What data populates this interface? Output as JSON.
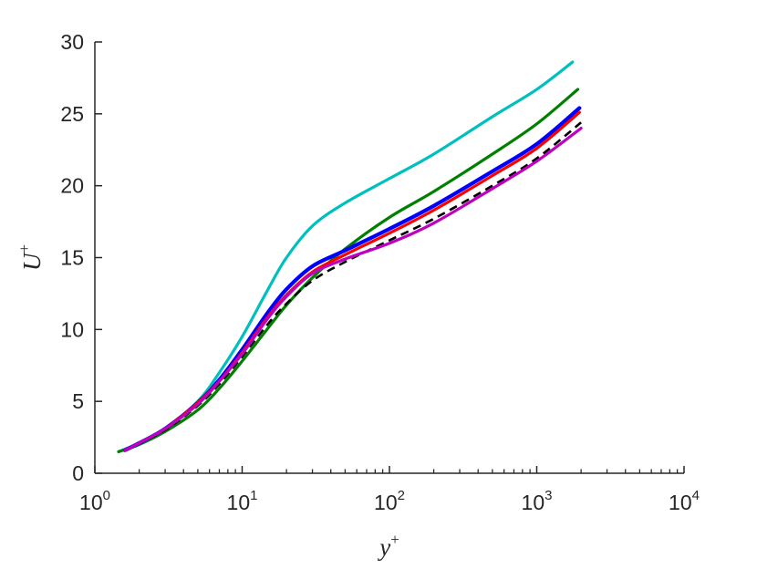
{
  "chart_data": {
    "type": "line",
    "xlabel": "y",
    "xlabel_sup": "+",
    "ylabel": "U",
    "ylabel_sup": "+",
    "xscale": "log",
    "xlim": [
      1,
      10000
    ],
    "ylim": [
      0,
      30
    ],
    "grid": false,
    "legend": "none",
    "xticks": [
      {
        "value": 1,
        "base": "10",
        "exp": "0"
      },
      {
        "value": 10,
        "base": "10",
        "exp": "1"
      },
      {
        "value": 100,
        "base": "10",
        "exp": "2"
      },
      {
        "value": 1000,
        "base": "10",
        "exp": "3"
      },
      {
        "value": 10000,
        "base": "10",
        "exp": "4"
      }
    ],
    "yticks": [
      {
        "value": 0,
        "label": "0"
      },
      {
        "value": 5,
        "label": "5"
      },
      {
        "value": 10,
        "label": "10"
      },
      {
        "value": 15,
        "label": "15"
      },
      {
        "value": 20,
        "label": "20"
      },
      {
        "value": 25,
        "label": "25"
      },
      {
        "value": 30,
        "label": "30"
      }
    ],
    "series": [
      {
        "color": "#00bfbf",
        "dash": "solid",
        "width": 3.2,
        "x": [
          1.45,
          2,
          3,
          5,
          7,
          10,
          15,
          20,
          30,
          50,
          100,
          200,
          500,
          1000,
          1750
        ],
        "y": [
          1.5,
          2.1,
          3.1,
          5.0,
          7.0,
          9.5,
          12.8,
          15.0,
          17.2,
          18.8,
          20.5,
          22.2,
          24.8,
          26.7,
          28.6
        ]
      },
      {
        "color": "#008000",
        "dash": "solid",
        "width": 3.2,
        "x": [
          1.45,
          2,
          3,
          5,
          7,
          10,
          15,
          20,
          30,
          50,
          100,
          200,
          500,
          1000,
          1900
        ],
        "y": [
          1.5,
          2.0,
          2.9,
          4.4,
          5.9,
          7.8,
          10.1,
          11.7,
          13.6,
          15.6,
          17.8,
          19.6,
          22.2,
          24.3,
          26.7
        ]
      },
      {
        "color": "#0000ff",
        "dash": "solid",
        "width": 4.2,
        "x": [
          1.6,
          2,
          3,
          5,
          7,
          10,
          15,
          20,
          30,
          50,
          100,
          200,
          500,
          1000,
          1950
        ],
        "y": [
          1.6,
          2.1,
          3.1,
          4.9,
          6.5,
          8.6,
          11.2,
          12.8,
          14.4,
          15.5,
          17.0,
          18.6,
          21.0,
          22.9,
          25.4
        ]
      },
      {
        "color": "#ff0000",
        "dash": "solid",
        "width": 3.2,
        "x": [
          1.6,
          2,
          3,
          5,
          7,
          10,
          15,
          20,
          30,
          50,
          100,
          200,
          500,
          1000,
          1950
        ],
        "y": [
          1.6,
          2.1,
          3.1,
          4.9,
          6.4,
          8.4,
          10.9,
          12.4,
          14.0,
          15.2,
          16.7,
          18.3,
          20.7,
          22.6,
          25.1
        ]
      },
      {
        "color": "#000000",
        "dash": "dashed",
        "width": 2.6,
        "x": [
          1.6,
          2,
          3,
          5,
          7,
          10,
          15,
          20,
          30,
          50,
          100,
          200,
          500,
          1000,
          2000
        ],
        "y": [
          1.6,
          2.1,
          3.0,
          4.7,
          6.2,
          8.1,
          10.4,
          11.8,
          13.4,
          14.7,
          16.2,
          17.7,
          20.0,
          21.9,
          24.4
        ]
      },
      {
        "color": "#bf00bf",
        "dash": "solid",
        "width": 3.2,
        "x": [
          1.6,
          2,
          3,
          5,
          7,
          10,
          15,
          20,
          30,
          50,
          100,
          200,
          500,
          1000,
          2000
        ],
        "y": [
          1.6,
          2.1,
          3.1,
          4.8,
          6.4,
          8.3,
          10.8,
          12.3,
          13.9,
          14.9,
          16.0,
          17.4,
          19.8,
          21.7,
          24.0
        ]
      }
    ]
  }
}
